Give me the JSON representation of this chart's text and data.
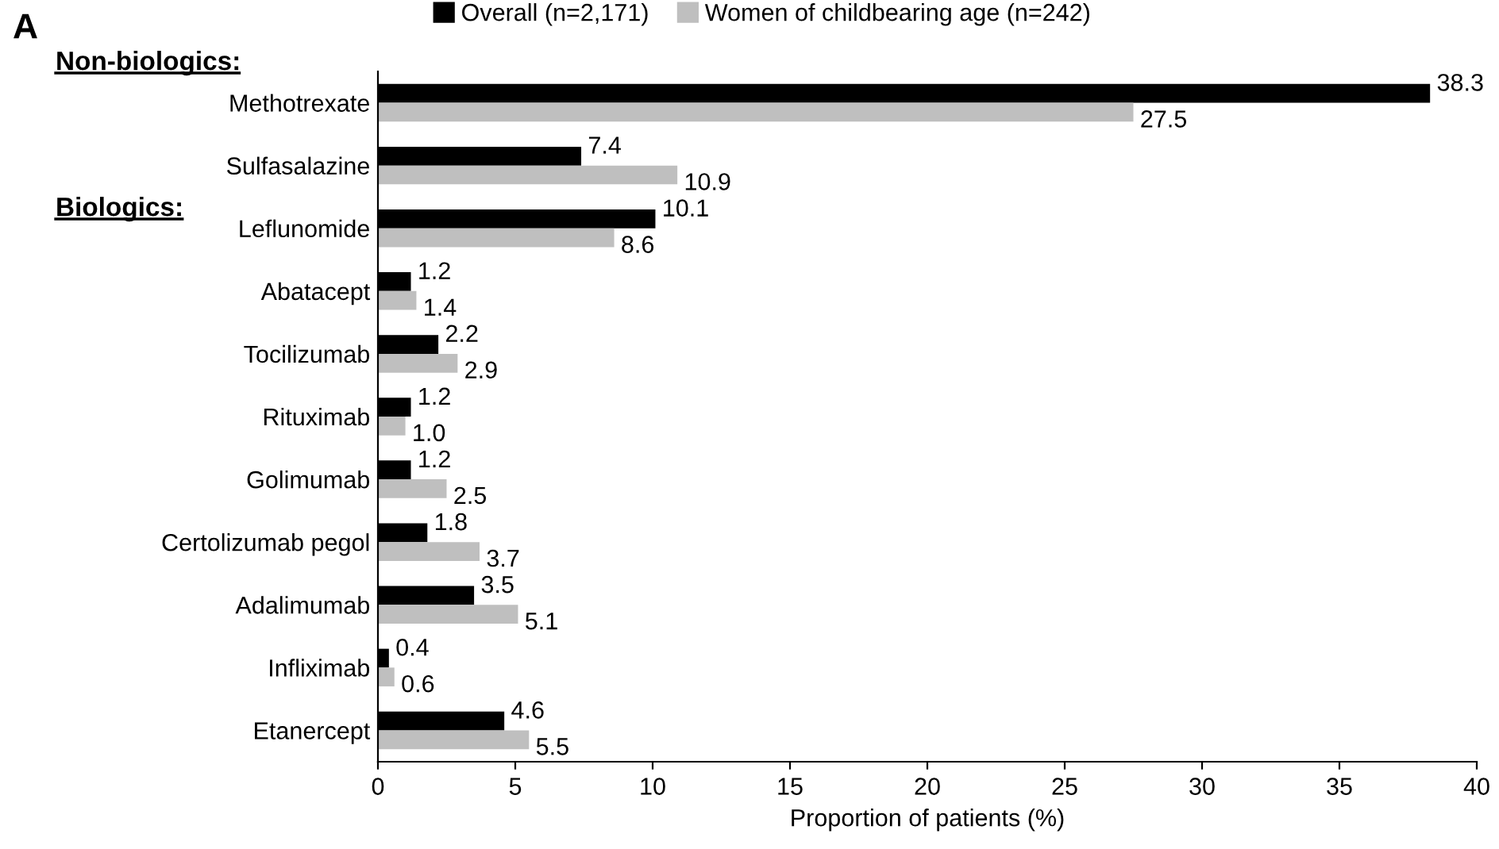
{
  "chart_data": {
    "type": "bar",
    "orientation": "horizontal",
    "categories": [
      "Methotrexate",
      "Sulfasalazine",
      "Leflunomide",
      "Abatacept",
      "Tocilizumab",
      "Rituximab",
      "Golimumab",
      "Certolizumab pegol",
      "Adalimumab",
      "Infliximab",
      "Etanercept"
    ],
    "series": [
      {
        "name": "Overall (n=2,171)",
        "color": "#000000",
        "values": [
          38.3,
          7.4,
          10.1,
          1.2,
          2.2,
          1.2,
          1.2,
          1.8,
          3.5,
          0.4,
          4.6
        ],
        "value_labels": [
          "38.3",
          "7.4",
          "10.1",
          "1.2",
          "2.2",
          "1.2",
          "1.2",
          "1.8",
          "3.5",
          "0.4",
          "4.6"
        ]
      },
      {
        "name": "Women of childbearing age (n=242)",
        "color": "#bfbfbf",
        "values": [
          27.5,
          10.9,
          8.6,
          1.4,
          2.9,
          1.0,
          2.5,
          3.7,
          5.1,
          0.6,
          5.5
        ],
        "value_labels": [
          "27.5",
          "10.9",
          "8.6",
          "1.4",
          "2.9",
          "1.0",
          "2.5",
          "3.7",
          "5.1",
          "0.6",
          "5.5"
        ]
      }
    ],
    "xlabel": "Proportion of patients (%)",
    "xlim": [
      0,
      40
    ],
    "xticks": [
      0,
      5,
      10,
      15,
      20,
      25,
      30,
      35,
      40
    ],
    "annotations": [
      "A",
      "Non-biologics:",
      "Biologics:"
    ],
    "legend": "top",
    "grid": false
  }
}
